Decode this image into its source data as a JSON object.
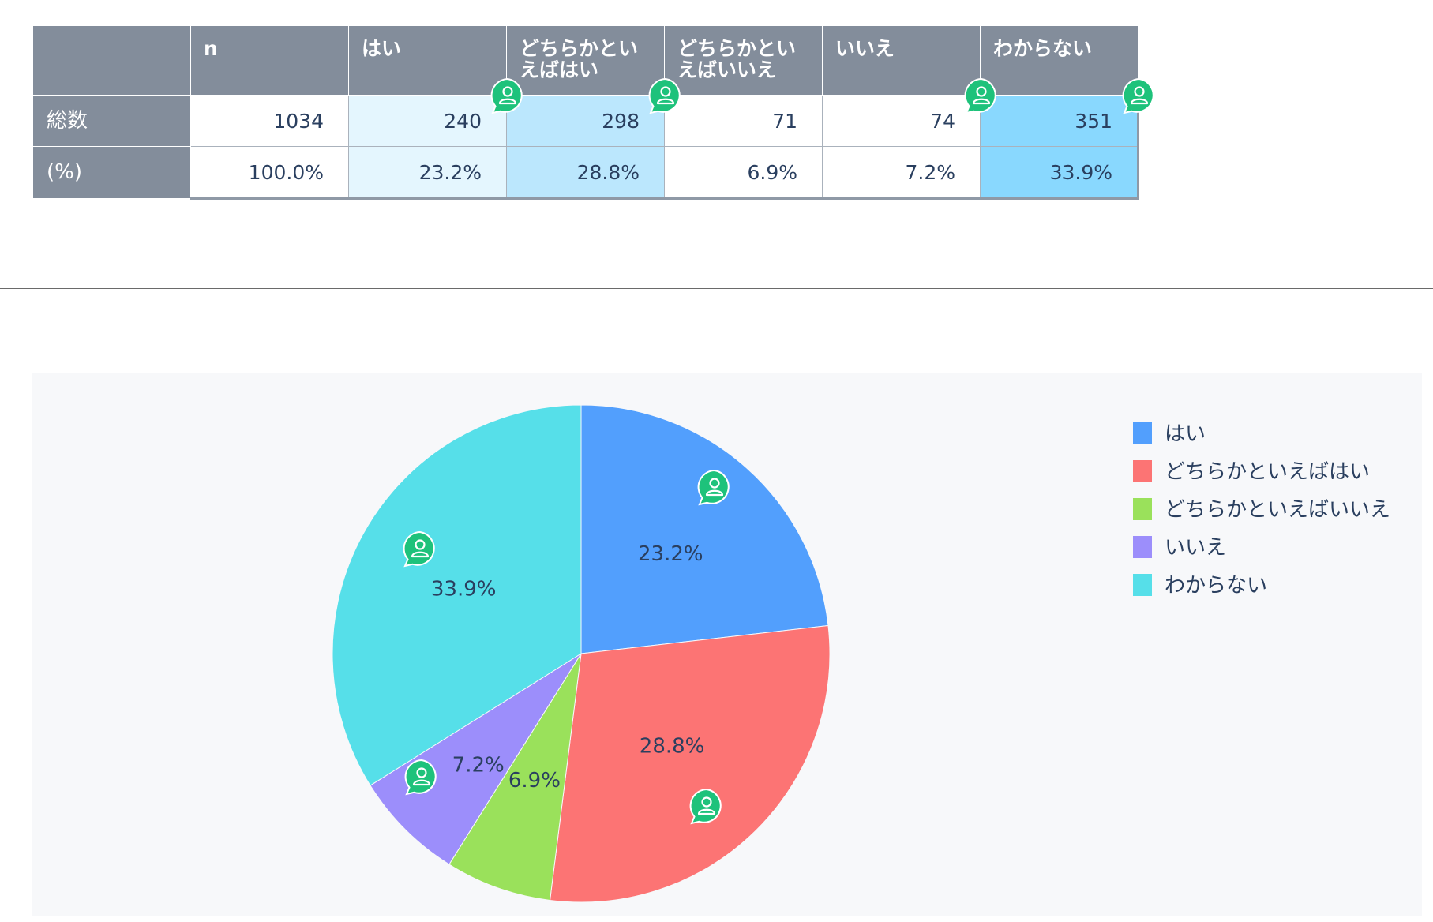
{
  "table": {
    "corner": "",
    "headers": [
      "n",
      "はい",
      "どちらかとい\nえばはい",
      "どちらかとい\nえばいいえ",
      "いいえ",
      "わからない"
    ],
    "rows": [
      {
        "label": "総数",
        "cells": [
          "1034",
          "240",
          "298",
          "71",
          "74",
          "351"
        ]
      },
      {
        "label": "(%)",
        "cells": [
          "100.0%",
          "23.2%",
          "28.8%",
          "6.9%",
          "7.2%",
          "33.9%"
        ]
      }
    ]
  },
  "chart_data": {
    "type": "pie",
    "categories": [
      "はい",
      "どちらかといえばはい",
      "どちらかといえばいいえ",
      "いいえ",
      "わからない"
    ],
    "values": [
      23.2,
      28.8,
      6.9,
      7.2,
      33.9
    ],
    "counts": [
      240,
      298,
      71,
      74,
      351
    ],
    "labels": [
      "23.2%",
      "28.8%",
      "6.9%",
      "7.2%",
      "33.9%"
    ],
    "colors": [
      "#529ffd",
      "#fc7474",
      "#9ae15b",
      "#9c8efb",
      "#56dfe9"
    ],
    "direction": "clockwise",
    "legend_position": "top-right"
  },
  "colors": {
    "header_bg": "#838d9b",
    "panel_bg": "#f7f8fa",
    "highlight_light": "#e4f6fe",
    "highlight_medium": "#bbe7fd",
    "highlight_strong": "#89d8fe",
    "comment_badge": "#1ec27b"
  },
  "icons": {
    "comment_badge": "person-chat-icon"
  }
}
